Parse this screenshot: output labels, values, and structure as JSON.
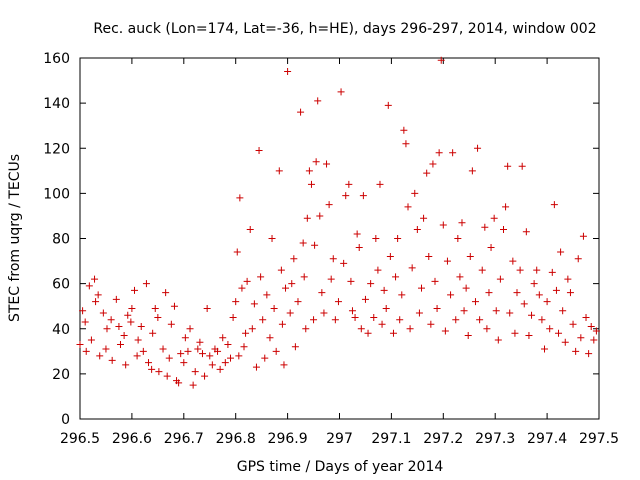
{
  "chart_data": {
    "type": "scatter",
    "title": "Rec. auck (Lon=174, Lat=-36, h=HE), days 296-297, 2014, window 002",
    "xlabel": "GPS time / Days of year 2014",
    "ylabel": "STEC from uqrg / TECUs",
    "xlim": [
      296.5,
      297.5
    ],
    "ylim": [
      0,
      160
    ],
    "xticks": [
      296.5,
      296.6,
      296.7,
      296.8,
      296.9,
      297,
      297.1,
      297.2,
      297.3,
      297.4,
      297.5
    ],
    "xtick_labels": [
      "296.5",
      "296.6",
      "296.7",
      "296.8",
      "296.9",
      "297",
      "297.1",
      "297.2",
      "297.3",
      "297.4",
      "297.5"
    ],
    "yticks": [
      0,
      20,
      40,
      60,
      80,
      100,
      120,
      140,
      160
    ],
    "ytick_labels": [
      "0",
      "20",
      "40",
      "60",
      "80",
      "100",
      "120",
      "140",
      "160"
    ],
    "grid": false,
    "marker": "+",
    "color": "#cc0000",
    "points": [
      [
        296.5,
        33
      ],
      [
        296.505,
        48
      ],
      [
        296.51,
        43
      ],
      [
        296.512,
        30
      ],
      [
        296.518,
        59
      ],
      [
        296.522,
        35
      ],
      [
        296.528,
        62
      ],
      [
        296.53,
        52
      ],
      [
        296.535,
        55
      ],
      [
        296.538,
        28
      ],
      [
        296.545,
        47
      ],
      [
        296.55,
        31
      ],
      [
        296.552,
        40
      ],
      [
        296.56,
        44
      ],
      [
        296.562,
        26
      ],
      [
        296.57,
        53
      ],
      [
        296.575,
        41
      ],
      [
        296.578,
        33
      ],
      [
        296.585,
        37
      ],
      [
        296.588,
        24
      ],
      [
        296.592,
        46
      ],
      [
        296.598,
        43
      ],
      [
        296.6,
        49
      ],
      [
        296.605,
        57
      ],
      [
        296.61,
        28
      ],
      [
        296.612,
        35
      ],
      [
        296.618,
        41
      ],
      [
        296.622,
        30
      ],
      [
        296.628,
        60
      ],
      [
        296.632,
        25
      ],
      [
        296.638,
        22
      ],
      [
        296.64,
        38
      ],
      [
        296.645,
        49
      ],
      [
        296.65,
        45
      ],
      [
        296.652,
        21
      ],
      [
        296.66,
        31
      ],
      [
        296.665,
        56
      ],
      [
        296.668,
        19
      ],
      [
        296.672,
        27
      ],
      [
        296.676,
        42
      ],
      [
        296.682,
        50
      ],
      [
        296.686,
        17
      ],
      [
        296.69,
        16
      ],
      [
        296.694,
        29
      ],
      [
        296.7,
        25
      ],
      [
        296.703,
        36
      ],
      [
        296.708,
        30
      ],
      [
        296.712,
        40
      ],
      [
        296.718,
        15
      ],
      [
        296.722,
        21
      ],
      [
        296.727,
        31
      ],
      [
        296.731,
        34
      ],
      [
        296.736,
        29
      ],
      [
        296.74,
        19
      ],
      [
        296.745,
        49
      ],
      [
        296.75,
        28
      ],
      [
        296.755,
        24
      ],
      [
        296.76,
        31
      ],
      [
        296.765,
        30
      ],
      [
        296.77,
        22
      ],
      [
        296.775,
        36
      ],
      [
        296.78,
        25
      ],
      [
        296.785,
        33
      ],
      [
        296.79,
        27
      ],
      [
        296.795,
        45
      ],
      [
        296.8,
        52
      ],
      [
        296.803,
        74
      ],
      [
        296.806,
        28
      ],
      [
        296.808,
        98
      ],
      [
        296.812,
        58
      ],
      [
        296.816,
        32
      ],
      [
        296.819,
        38
      ],
      [
        296.822,
        61
      ],
      [
        296.828,
        84
      ],
      [
        296.832,
        40
      ],
      [
        296.836,
        51
      ],
      [
        296.84,
        23
      ],
      [
        296.845,
        119
      ],
      [
        296.848,
        63
      ],
      [
        296.852,
        44
      ],
      [
        296.856,
        27
      ],
      [
        296.86,
        55
      ],
      [
        296.866,
        36
      ],
      [
        296.87,
        80
      ],
      [
        296.874,
        49
      ],
      [
        296.878,
        30
      ],
      [
        296.884,
        110
      ],
      [
        296.888,
        66
      ],
      [
        296.89,
        42
      ],
      [
        296.893,
        24
      ],
      [
        296.896,
        58
      ],
      [
        296.9,
        154
      ],
      [
        296.905,
        47
      ],
      [
        296.908,
        60
      ],
      [
        296.912,
        71
      ],
      [
        296.915,
        32
      ],
      [
        296.92,
        52
      ],
      [
        296.925,
        136
      ],
      [
        296.93,
        78
      ],
      [
        296.932,
        63
      ],
      [
        296.935,
        40
      ],
      [
        296.938,
        89
      ],
      [
        296.942,
        110
      ],
      [
        296.946,
        104
      ],
      [
        296.95,
        44
      ],
      [
        296.952,
        77
      ],
      [
        296.955,
        114
      ],
      [
        296.958,
        141
      ],
      [
        296.962,
        90
      ],
      [
        296.966,
        56
      ],
      [
        296.97,
        47
      ],
      [
        296.975,
        113
      ],
      [
        296.98,
        95
      ],
      [
        296.984,
        62
      ],
      [
        296.988,
        71
      ],
      [
        296.992,
        44
      ],
      [
        296.998,
        52
      ],
      [
        297.003,
        145
      ],
      [
        297.008,
        69
      ],
      [
        297.012,
        99
      ],
      [
        297.018,
        104
      ],
      [
        297.022,
        61
      ],
      [
        297.025,
        48
      ],
      [
        297.03,
        45
      ],
      [
        297.034,
        82
      ],
      [
        297.038,
        76
      ],
      [
        297.042,
        40
      ],
      [
        297.046,
        99
      ],
      [
        297.05,
        53
      ],
      [
        297.055,
        38
      ],
      [
        297.06,
        60
      ],
      [
        297.066,
        45
      ],
      [
        297.07,
        80
      ],
      [
        297.074,
        66
      ],
      [
        297.078,
        104
      ],
      [
        297.082,
        42
      ],
      [
        297.086,
        57
      ],
      [
        297.09,
        49
      ],
      [
        297.094,
        139
      ],
      [
        297.098,
        72
      ],
      [
        297.104,
        38
      ],
      [
        297.108,
        63
      ],
      [
        297.112,
        80
      ],
      [
        297.116,
        44
      ],
      [
        297.12,
        55
      ],
      [
        297.124,
        128
      ],
      [
        297.128,
        122
      ],
      [
        297.132,
        94
      ],
      [
        297.136,
        40
      ],
      [
        297.14,
        67
      ],
      [
        297.145,
        100
      ],
      [
        297.15,
        84
      ],
      [
        297.154,
        47
      ],
      [
        297.158,
        58
      ],
      [
        297.162,
        89
      ],
      [
        297.168,
        109
      ],
      [
        297.172,
        72
      ],
      [
        297.176,
        42
      ],
      [
        297.18,
        113
      ],
      [
        297.184,
        61
      ],
      [
        297.188,
        49
      ],
      [
        297.192,
        118
      ],
      [
        297.196,
        159
      ],
      [
        297.2,
        86
      ],
      [
        297.204,
        39
      ],
      [
        297.208,
        70
      ],
      [
        297.214,
        55
      ],
      [
        297.218,
        118
      ],
      [
        297.224,
        44
      ],
      [
        297.228,
        80
      ],
      [
        297.232,
        63
      ],
      [
        297.236,
        87
      ],
      [
        297.24,
        48
      ],
      [
        297.244,
        58
      ],
      [
        297.248,
        37
      ],
      [
        297.252,
        72
      ],
      [
        297.256,
        110
      ],
      [
        297.262,
        52
      ],
      [
        297.266,
        120
      ],
      [
        297.27,
        44
      ],
      [
        297.275,
        66
      ],
      [
        297.28,
        85
      ],
      [
        297.284,
        40
      ],
      [
        297.288,
        56
      ],
      [
        297.292,
        76
      ],
      [
        297.298,
        89
      ],
      [
        297.302,
        48
      ],
      [
        297.306,
        35
      ],
      [
        297.31,
        62
      ],
      [
        297.316,
        84
      ],
      [
        297.32,
        94
      ],
      [
        297.324,
        112
      ],
      [
        297.328,
        47
      ],
      [
        297.334,
        70
      ],
      [
        297.338,
        38
      ],
      [
        297.342,
        56
      ],
      [
        297.348,
        66
      ],
      [
        297.352,
        112
      ],
      [
        297.356,
        51
      ],
      [
        297.36,
        83
      ],
      [
        297.365,
        37
      ],
      [
        297.37,
        46
      ],
      [
        297.375,
        60
      ],
      [
        297.38,
        66
      ],
      [
        297.385,
        55
      ],
      [
        297.39,
        44
      ],
      [
        297.395,
        31
      ],
      [
        297.4,
        52
      ],
      [
        297.405,
        40
      ],
      [
        297.41,
        65
      ],
      [
        297.414,
        95
      ],
      [
        297.418,
        57
      ],
      [
        297.422,
        38
      ],
      [
        297.426,
        74
      ],
      [
        297.43,
        48
      ],
      [
        297.435,
        34
      ],
      [
        297.44,
        62
      ],
      [
        297.445,
        56
      ],
      [
        297.45,
        42
      ],
      [
        297.455,
        30
      ],
      [
        297.46,
        71
      ],
      [
        297.465,
        36
      ],
      [
        297.47,
        81
      ],
      [
        297.475,
        45
      ],
      [
        297.48,
        29
      ],
      [
        297.485,
        41
      ],
      [
        297.49,
        35
      ],
      [
        297.495,
        39
      ]
    ]
  }
}
